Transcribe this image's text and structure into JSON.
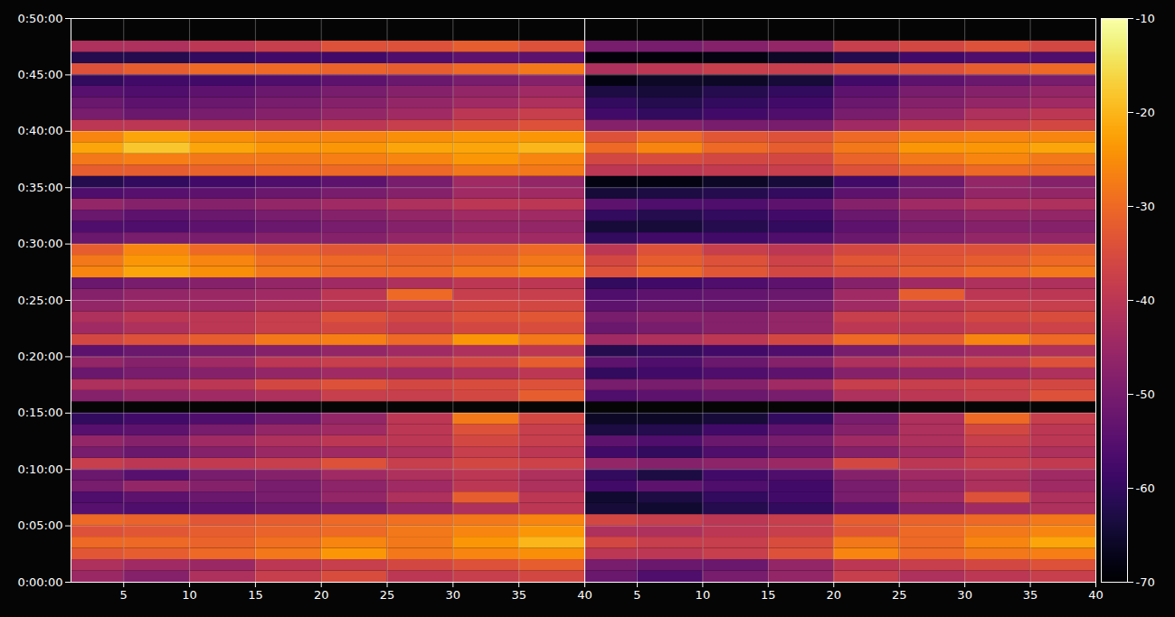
{
  "chart_data": {
    "type": "heatmap",
    "grid": true,
    "xlim": [
      1,
      40
    ],
    "xticks": [
      5,
      10,
      15,
      20,
      25,
      30,
      35,
      40
    ],
    "ylim": [
      0,
      3000
    ],
    "yticks": [
      {
        "value": 0,
        "label": "0:00:00"
      },
      {
        "value": 300,
        "label": "0:05:00"
      },
      {
        "value": 600,
        "label": "0:10:00"
      },
      {
        "value": 900,
        "label": "0:15:00"
      },
      {
        "value": 1200,
        "label": "0:20:00"
      },
      {
        "value": 1500,
        "label": "0:25:00"
      },
      {
        "value": 1800,
        "label": "0:30:00"
      },
      {
        "value": 2100,
        "label": "0:35:00"
      },
      {
        "value": 2400,
        "label": "0:40:00"
      },
      {
        "value": 2700,
        "label": "0:45:00"
      },
      {
        "value": 3000,
        "label": "0:50:00"
      }
    ],
    "x_edges": [
      1,
      5,
      10,
      15,
      20,
      25,
      30,
      35,
      40
    ],
    "y_edges": [
      0,
      60,
      120,
      180,
      240,
      300,
      360,
      420,
      480,
      540,
      600,
      660,
      720,
      780,
      840,
      900,
      960,
      1020,
      1080,
      1140,
      1200,
      1260,
      1320,
      1380,
      1440,
      1500,
      1560,
      1620,
      1680,
      1740,
      1800,
      1860,
      1920,
      1980,
      2040,
      2100,
      2160,
      2220,
      2280,
      2340,
      2400,
      2460,
      2520,
      2580,
      2640,
      2700,
      2760,
      2820,
      2880
    ],
    "colorbar": {
      "range": [
        -70,
        -10
      ],
      "ticks": [
        -70,
        -60,
        -50,
        -40,
        -30,
        -20,
        -10
      ]
    },
    "panels": [
      {
        "values": [
          [
            -45,
            -48,
            -42,
            -38,
            -35,
            -40,
            -38,
            -36
          ],
          [
            -42,
            -44,
            -45,
            -40,
            -38,
            -36,
            -34,
            -32
          ],
          [
            -33,
            -32,
            -30,
            -28,
            -24,
            -28,
            -26,
            -25
          ],
          [
            -30,
            -30,
            -31,
            -29,
            -26,
            -28,
            -24,
            -20
          ],
          [
            -34,
            -33,
            -32,
            -31,
            -30,
            -28,
            -26,
            -24
          ],
          [
            -30,
            -31,
            -33,
            -32,
            -30,
            -29,
            -28,
            -26
          ],
          [
            -55,
            -56,
            -54,
            -52,
            -50,
            -46,
            -42,
            -40
          ],
          [
            -56,
            -54,
            -52,
            -50,
            -46,
            -42,
            -32,
            -40
          ],
          [
            -50,
            -46,
            -48,
            -50,
            -47,
            -44,
            -40,
            -42
          ],
          [
            -52,
            -55,
            -50,
            -48,
            -44,
            -42,
            -40,
            -42
          ],
          [
            -38,
            -40,
            -39,
            -38,
            -34,
            -38,
            -36,
            -37
          ],
          [
            -50,
            -52,
            -48,
            -45,
            -44,
            -42,
            -38,
            -40
          ],
          [
            -46,
            -48,
            -44,
            -42,
            -40,
            -40,
            -36,
            -38
          ],
          [
            -55,
            -54,
            -50,
            -46,
            -44,
            -40,
            -34,
            -38
          ],
          [
            -60,
            -58,
            -56,
            -52,
            -46,
            -40,
            -28,
            -36
          ],
          [
            null,
            null,
            null,
            null,
            null,
            null,
            null,
            null
          ],
          [
            -48,
            -46,
            -44,
            -42,
            -38,
            -38,
            -36,
            -32
          ],
          [
            -42,
            -42,
            -40,
            -36,
            -34,
            -36,
            -35,
            -34
          ],
          [
            -52,
            -50,
            -48,
            -46,
            -44,
            -44,
            -42,
            -40
          ],
          [
            -46,
            -48,
            -44,
            -40,
            -38,
            -38,
            -36,
            -32
          ],
          [
            -54,
            -52,
            -50,
            -48,
            -46,
            -44,
            -42,
            -40
          ],
          [
            -36,
            -34,
            -32,
            -28,
            -27,
            -30,
            -24,
            -28
          ],
          [
            -44,
            -42,
            -40,
            -38,
            -36,
            -38,
            -36,
            -35
          ],
          [
            -42,
            -40,
            -40,
            -38,
            -34,
            -36,
            -34,
            -33
          ],
          [
            -46,
            -44,
            -44,
            -42,
            -40,
            -38,
            -36,
            -36
          ],
          [
            -48,
            -46,
            -45,
            -44,
            -40,
            -30,
            -38,
            -38
          ],
          [
            -52,
            -50,
            -48,
            -46,
            -44,
            -42,
            -40,
            -40
          ],
          [
            -26,
            -22,
            -25,
            -28,
            -30,
            -30,
            -28,
            -26
          ],
          [
            -28,
            -24,
            -26,
            -29,
            -30,
            -31,
            -30,
            -28
          ],
          [
            -32,
            -26,
            -30,
            -32,
            -33,
            -32,
            -32,
            -30
          ],
          [
            -52,
            -50,
            -50,
            -48,
            -48,
            -46,
            -44,
            -44
          ],
          [
            -56,
            -56,
            -54,
            -52,
            -50,
            -48,
            -46,
            -46
          ],
          [
            -52,
            -54,
            -52,
            -50,
            -48,
            -46,
            -44,
            -44
          ],
          [
            -46,
            -48,
            -48,
            -46,
            -44,
            -42,
            -40,
            -40
          ],
          [
            -56,
            -55,
            -54,
            -52,
            -50,
            -48,
            -44,
            -44
          ],
          [
            -62,
            -60,
            -58,
            -56,
            -54,
            -50,
            -44,
            -46
          ],
          [
            -32,
            -32,
            -31,
            -30,
            -30,
            -30,
            -28,
            -28
          ],
          [
            -28,
            -27,
            -28,
            -28,
            -27,
            -26,
            -24,
            -26
          ],
          [
            -22,
            -18,
            -22,
            -24,
            -24,
            -22,
            -22,
            -20
          ],
          [
            -26,
            -22,
            -25,
            -26,
            -26,
            -25,
            -24,
            -24
          ],
          [
            -40,
            -40,
            -42,
            -42,
            -40,
            -38,
            -36,
            -34
          ],
          [
            -50,
            -52,
            -50,
            -48,
            -46,
            -44,
            -40,
            -38
          ],
          [
            -52,
            -54,
            -52,
            -50,
            -48,
            -46,
            -44,
            -42
          ],
          [
            -55,
            -56,
            -54,
            -52,
            -50,
            -48,
            -46,
            -44
          ],
          [
            -60,
            -58,
            -58,
            -56,
            -54,
            -52,
            -50,
            -48
          ],
          [
            -34,
            -32,
            -30,
            -30,
            -31,
            -32,
            -30,
            -28
          ],
          [
            -62,
            -62,
            -60,
            -58,
            -58,
            -56,
            -54,
            -54
          ],
          [
            -42,
            -42,
            -40,
            -38,
            -34,
            -34,
            -32,
            -34
          ]
        ]
      },
      {
        "values": [
          [
            -52,
            -56,
            -50,
            -46,
            -38,
            -42,
            -40,
            -38
          ],
          [
            -50,
            -52,
            -52,
            -46,
            -40,
            -38,
            -36,
            -34
          ],
          [
            -40,
            -40,
            -38,
            -34,
            -26,
            -30,
            -28,
            -27
          ],
          [
            -36,
            -38,
            -38,
            -35,
            -28,
            -30,
            -26,
            -22
          ],
          [
            -42,
            -42,
            -40,
            -38,
            -33,
            -30,
            -28,
            -26
          ],
          [
            -36,
            -38,
            -40,
            -38,
            -32,
            -31,
            -30,
            -28
          ],
          [
            -64,
            -65,
            -62,
            -60,
            -54,
            -48,
            -44,
            -42
          ],
          [
            -65,
            -63,
            -60,
            -58,
            -50,
            -44,
            -34,
            -42
          ],
          [
            -58,
            -54,
            -56,
            -58,
            -50,
            -46,
            -42,
            -44
          ],
          [
            -60,
            -63,
            -58,
            -56,
            -48,
            -44,
            -42,
            -44
          ],
          [
            -46,
            -48,
            -47,
            -45,
            -36,
            -40,
            -38,
            -39
          ],
          [
            -58,
            -60,
            -56,
            -53,
            -48,
            -44,
            -40,
            -42
          ],
          [
            -54,
            -56,
            -52,
            -50,
            -44,
            -42,
            -38,
            -40
          ],
          [
            -63,
            -62,
            -58,
            -54,
            -48,
            -42,
            -36,
            -40
          ],
          [
            -66,
            -66,
            -64,
            -60,
            -50,
            -42,
            -30,
            -38
          ],
          [
            null,
            null,
            null,
            null,
            null,
            null,
            null,
            null
          ],
          [
            -56,
            -54,
            -52,
            -50,
            -42,
            -40,
            -38,
            -34
          ],
          [
            -50,
            -50,
            -48,
            -44,
            -38,
            -38,
            -37,
            -36
          ],
          [
            -60,
            -58,
            -56,
            -54,
            -48,
            -46,
            -44,
            -42
          ],
          [
            -54,
            -56,
            -52,
            -48,
            -42,
            -40,
            -38,
            -34
          ],
          [
            -62,
            -60,
            -58,
            -56,
            -50,
            -46,
            -44,
            -42
          ],
          [
            -44,
            -42,
            -40,
            -36,
            -30,
            -32,
            -26,
            -30
          ],
          [
            -52,
            -50,
            -48,
            -46,
            -40,
            -40,
            -38,
            -37
          ],
          [
            -50,
            -48,
            -48,
            -46,
            -38,
            -38,
            -36,
            -35
          ],
          [
            -54,
            -52,
            -52,
            -50,
            -44,
            -40,
            -38,
            -38
          ],
          [
            -56,
            -54,
            -53,
            -52,
            -44,
            -32,
            -40,
            -40
          ],
          [
            -60,
            -58,
            -56,
            -54,
            -48,
            -44,
            -42,
            -42
          ],
          [
            -34,
            -30,
            -33,
            -36,
            -34,
            -32,
            -30,
            -28
          ],
          [
            -36,
            -32,
            -34,
            -37,
            -33,
            -33,
            -32,
            -30
          ],
          [
            -40,
            -34,
            -38,
            -40,
            -36,
            -34,
            -34,
            -32
          ],
          [
            -60,
            -58,
            -58,
            -56,
            -52,
            -48,
            -46,
            -46
          ],
          [
            -64,
            -64,
            -62,
            -60,
            -54,
            -50,
            -48,
            -48
          ],
          [
            -60,
            -62,
            -60,
            -58,
            -52,
            -48,
            -46,
            -46
          ],
          [
            -54,
            -56,
            -56,
            -54,
            -48,
            -44,
            -42,
            -42
          ],
          [
            -64,
            -63,
            -62,
            -60,
            -54,
            -50,
            -46,
            -46
          ],
          [
            -68,
            -68,
            -66,
            -64,
            -58,
            -52,
            -46,
            -48
          ],
          [
            -40,
            -40,
            -39,
            -38,
            -34,
            -32,
            -30,
            -30
          ],
          [
            -36,
            -35,
            -36,
            -36,
            -31,
            -28,
            -26,
            -28
          ],
          [
            -30,
            -26,
            -30,
            -32,
            -28,
            -24,
            -24,
            -22
          ],
          [
            -34,
            -30,
            -33,
            -34,
            -30,
            -27,
            -26,
            -26
          ],
          [
            -48,
            -48,
            -50,
            -50,
            -44,
            -40,
            -38,
            -36
          ],
          [
            -58,
            -60,
            -58,
            -56,
            -50,
            -46,
            -42,
            -40
          ],
          [
            -60,
            -62,
            -60,
            -58,
            -52,
            -48,
            -46,
            -44
          ],
          [
            -63,
            -64,
            -62,
            -60,
            -54,
            -50,
            -48,
            -46
          ],
          [
            -68,
            -66,
            -66,
            -64,
            -58,
            -54,
            -52,
            -50
          ],
          [
            -42,
            -40,
            -38,
            -38,
            -35,
            -34,
            -32,
            -30
          ],
          [
            -69,
            -69,
            -68,
            -66,
            -62,
            -58,
            -56,
            -56
          ],
          [
            -50,
            -50,
            -48,
            -46,
            -38,
            -36,
            -34,
            -36
          ]
        ]
      }
    ]
  }
}
